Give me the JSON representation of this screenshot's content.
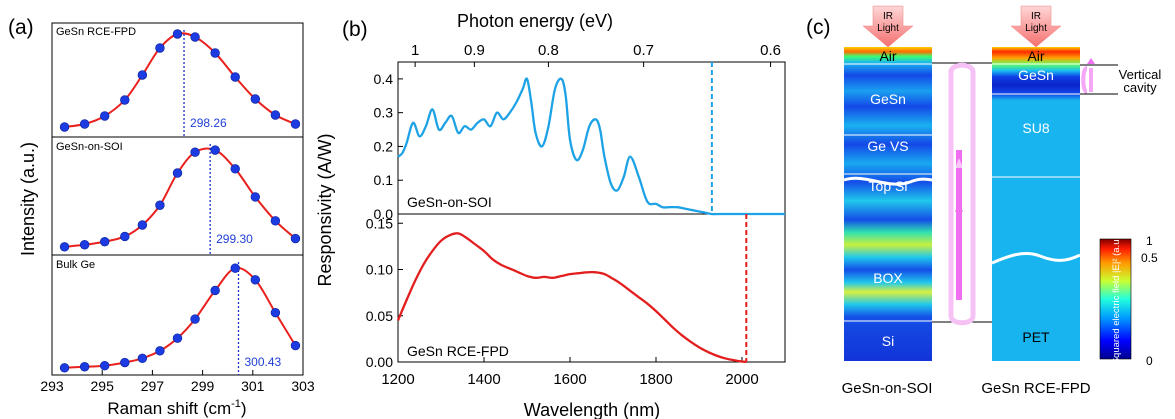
{
  "panel_a": {
    "label": "(a)",
    "ylabel": "Intensity (a.u.)",
    "xlabel_main": "Raman shift (cm",
    "xlabel_sup": "-1",
    "xlabel_tail": ")",
    "xticks": [
      "293",
      "295",
      "297",
      "299",
      "301",
      "303"
    ]
  },
  "panel_b": {
    "label": "(b)",
    "top_axis_title": "Photon energy (eV)",
    "top_ticks": [
      "1",
      "0.9",
      "0.8",
      "0.7",
      "0.6"
    ],
    "ylabel": "Responsivity (A/W)",
    "xlabel": "Wavelength (nm)",
    "xticks": [
      "1200",
      "1400",
      "1600",
      "1800",
      "2000"
    ],
    "upper_yticks": [
      "0.0",
      "0.1",
      "0.2",
      "0.3",
      "0.4"
    ],
    "lower_yticks": [
      "0.00",
      "0.05",
      "0.10",
      "0.15"
    ],
    "upper_label": "GeSn-on-SOI",
    "lower_label": "GeSn RCE-FPD"
  },
  "panel_c": {
    "label": "(c)",
    "ir_label_1": "IR",
    "ir_label_2": "Light",
    "left_layers": [
      "Air",
      "GeSn",
      "Ge VS",
      "Top Si",
      "BOX",
      "Si"
    ],
    "right_layers": [
      "Air",
      "GeSn",
      "SU8",
      "PET"
    ],
    "left_caption": "GeSn-on-SOI",
    "right_caption": "GeSn RCE-FPD",
    "vertical_cavity_1": "Vertical",
    "vertical_cavity_2": "cavity",
    "colorbar_label": "Squared electric field |E|² (a.u.)",
    "colorbar_ticks": [
      "1",
      "0.5",
      "0"
    ]
  },
  "colors": {
    "raman_line": "#e8201e",
    "raman_marker": "#1c3be0",
    "peak_line": "#1a2fd0",
    "soi_curve": "#1ea2e6",
    "rce_curve": "#e31e1e",
    "field_base": "#18b4ef",
    "cavity_arrow": "#f07cf0"
  },
  "chart_data": [
    {
      "type": "line",
      "title": "GeSn RCE-FPD",
      "xlabel": "Raman shift (cm-1)",
      "ylabel": "Intensity (a.u.)",
      "xlim": [
        293,
        303
      ],
      "peak_label": "298.26",
      "peak": 298.26,
      "x": [
        293.5,
        294.3,
        295.1,
        295.9,
        296.6,
        297.3,
        298.0,
        298.7,
        299.5,
        300.3,
        301.1,
        301.9,
        302.7
      ],
      "y": [
        0.06,
        0.09,
        0.17,
        0.33,
        0.58,
        0.85,
        0.99,
        0.96,
        0.8,
        0.56,
        0.34,
        0.18,
        0.09
      ]
    },
    {
      "type": "line",
      "title": "GeSn-on-SOI",
      "xlabel": "Raman shift (cm-1)",
      "ylabel": "Intensity (a.u.)",
      "xlim": [
        293,
        303
      ],
      "peak_label": "299.30",
      "peak": 299.3,
      "x": [
        293.5,
        294.3,
        295.1,
        295.9,
        296.6,
        297.3,
        298.0,
        298.7,
        299.5,
        300.3,
        301.1,
        301.9,
        302.7
      ],
      "y": [
        0.04,
        0.06,
        0.09,
        0.14,
        0.25,
        0.44,
        0.75,
        0.95,
        0.97,
        0.79,
        0.52,
        0.29,
        0.12
      ]
    },
    {
      "type": "line",
      "title": "Bulk Ge",
      "xlabel": "Raman shift (cm-1)",
      "ylabel": "Intensity (a.u.)",
      "xlim": [
        293,
        303
      ],
      "peak_label": "300.43",
      "peak": 300.43,
      "x": [
        293.5,
        294.3,
        295.1,
        295.9,
        296.6,
        297.3,
        298.0,
        298.7,
        299.5,
        300.3,
        301.1,
        301.9,
        302.7
      ],
      "y": [
        0.03,
        0.04,
        0.05,
        0.08,
        0.12,
        0.19,
        0.31,
        0.49,
        0.76,
        0.97,
        0.86,
        0.55,
        0.24
      ]
    },
    {
      "type": "line",
      "title": "GeSn-on-SOI",
      "xlabel": "Wavelength (nm)",
      "ylabel": "Responsivity (A/W)",
      "xlim": [
        1200,
        2100
      ],
      "ylim": [
        0,
        0.45
      ],
      "cutoff_nm": 1930,
      "x": [
        1200,
        1210,
        1220,
        1235,
        1250,
        1265,
        1280,
        1295,
        1310,
        1325,
        1340,
        1355,
        1370,
        1385,
        1400,
        1415,
        1430,
        1445,
        1460,
        1475,
        1490,
        1500,
        1510,
        1520,
        1535,
        1550,
        1565,
        1580,
        1590,
        1600,
        1615,
        1630,
        1645,
        1660,
        1670,
        1680,
        1695,
        1710,
        1725,
        1740,
        1760,
        1775,
        1785,
        1800,
        1815,
        1830,
        1850,
        1870,
        1890,
        1910,
        1930,
        1950,
        2100
      ],
      "y": [
        0.17,
        0.18,
        0.21,
        0.27,
        0.23,
        0.26,
        0.31,
        0.25,
        0.27,
        0.29,
        0.24,
        0.26,
        0.25,
        0.27,
        0.28,
        0.26,
        0.3,
        0.28,
        0.3,
        0.33,
        0.37,
        0.4,
        0.33,
        0.24,
        0.2,
        0.26,
        0.37,
        0.4,
        0.35,
        0.22,
        0.16,
        0.19,
        0.26,
        0.28,
        0.25,
        0.17,
        0.09,
        0.07,
        0.11,
        0.17,
        0.11,
        0.05,
        0.03,
        0.03,
        0.02,
        0.02,
        0.02,
        0.015,
        0.01,
        0.005,
        0.0,
        0.0,
        0.0
      ]
    },
    {
      "type": "line",
      "title": "GeSn RCE-FPD",
      "xlabel": "Wavelength (nm)",
      "ylabel": "Responsivity (A/W)",
      "xlim": [
        1200,
        2100
      ],
      "ylim": [
        0,
        0.16
      ],
      "cutoff_nm": 2010,
      "x": [
        1200,
        1220,
        1240,
        1260,
        1280,
        1300,
        1320,
        1340,
        1360,
        1380,
        1400,
        1420,
        1440,
        1460,
        1480,
        1500,
        1520,
        1540,
        1560,
        1580,
        1600,
        1620,
        1640,
        1660,
        1680,
        1700,
        1720,
        1740,
        1760,
        1780,
        1800,
        1820,
        1840,
        1860,
        1880,
        1900,
        1920,
        1940,
        1960,
        1980,
        2000,
        2010
      ],
      "y": [
        0.045,
        0.067,
        0.088,
        0.106,
        0.12,
        0.131,
        0.137,
        0.139,
        0.134,
        0.127,
        0.12,
        0.111,
        0.105,
        0.101,
        0.097,
        0.093,
        0.091,
        0.092,
        0.091,
        0.093,
        0.095,
        0.096,
        0.097,
        0.097,
        0.095,
        0.09,
        0.084,
        0.077,
        0.07,
        0.063,
        0.055,
        0.046,
        0.037,
        0.029,
        0.022,
        0.016,
        0.011,
        0.007,
        0.004,
        0.002,
        0.0005,
        0.0
      ]
    }
  ]
}
